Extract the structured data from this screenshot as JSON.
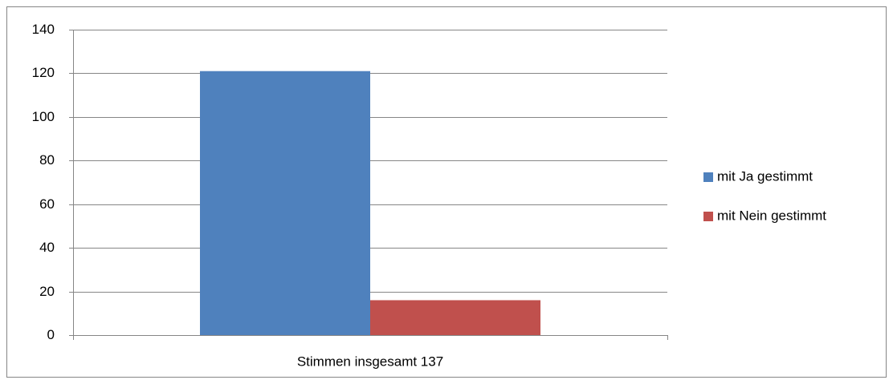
{
  "chart_data": {
    "type": "bar",
    "categories": [
      "Stimmen insgesamt 137"
    ],
    "series": [
      {
        "name": "mit Ja gestimmt",
        "color": "#4f81bd",
        "values": [
          121
        ]
      },
      {
        "name": "mit Nein gestimmt",
        "color": "#c0504d",
        "values": [
          16
        ]
      }
    ],
    "ylim": [
      0,
      140
    ],
    "yticks": [
      0,
      20,
      40,
      60,
      80,
      100,
      120,
      140
    ],
    "grid": true,
    "legend": "right"
  }
}
